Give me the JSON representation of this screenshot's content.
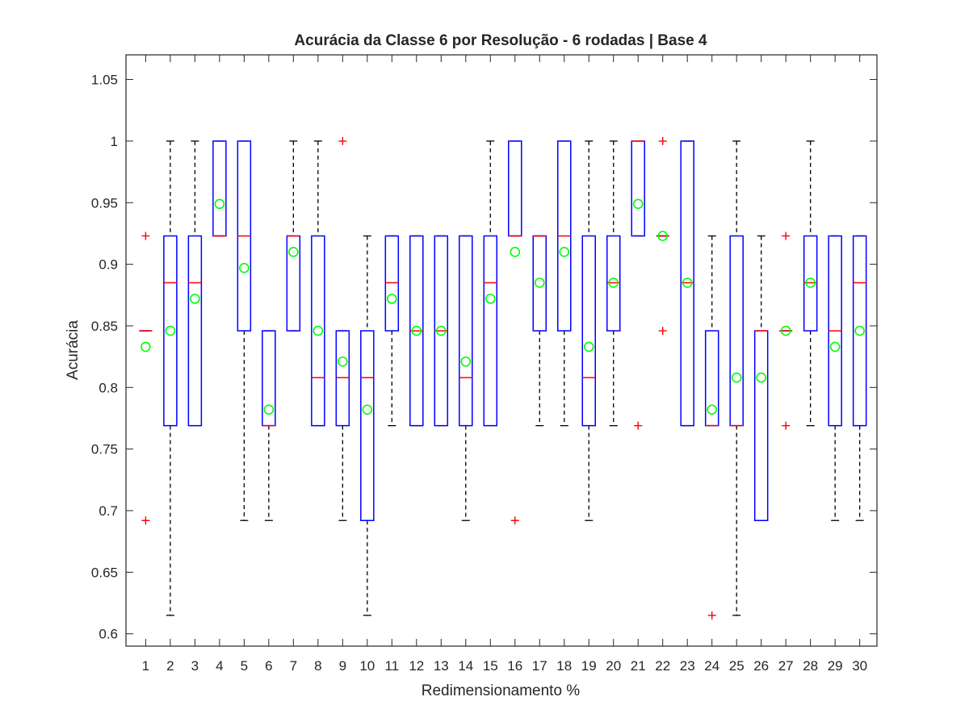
{
  "chart_data": {
    "type": "boxplot",
    "title": "Acurácia da Classe 6 por Resolução - 6 rodadas | Base 4",
    "xlabel": "Redimensionamento %",
    "ylabel": "Acurácia",
    "ylim": [
      0.59,
      1.07
    ],
    "yticks": [
      "0.6",
      "0.65",
      "0.7",
      "0.75",
      "0.8",
      "0.85",
      "0.9",
      "0.95",
      "1",
      "1.05"
    ],
    "ytick_values": [
      0.6,
      0.65,
      0.7,
      0.75,
      0.8,
      0.85,
      0.9,
      0.95,
      1.0,
      1.05
    ],
    "categories": [
      "1",
      "2",
      "3",
      "4",
      "5",
      "6",
      "7",
      "8",
      "9",
      "10",
      "11",
      "12",
      "13",
      "14",
      "15",
      "16",
      "17",
      "18",
      "19",
      "20",
      "21",
      "22",
      "23",
      "24",
      "25",
      "26",
      "27",
      "28",
      "29",
      "30"
    ],
    "colors": {
      "box": "#0000ff",
      "median": "#ff0000",
      "outlier": "#ff0000",
      "mean": "#00ff00",
      "whisker": "#000000",
      "axis": "#262626"
    },
    "boxes": [
      {
        "q1": 0.846,
        "median": 0.846,
        "q3": 0.846,
        "whisker_low": 0.846,
        "whisker_high": 0.846,
        "mean": 0.833,
        "outliers": [
          0.923,
          0.692
        ]
      },
      {
        "q1": 0.769,
        "median": 0.885,
        "q3": 0.923,
        "whisker_low": 0.615,
        "whisker_high": 1.0,
        "mean": 0.846,
        "outliers": []
      },
      {
        "q1": 0.769,
        "median": 0.885,
        "q3": 0.923,
        "whisker_low": 0.769,
        "whisker_high": 1.0,
        "mean": 0.872,
        "outliers": []
      },
      {
        "q1": 0.923,
        "median": 0.923,
        "q3": 1.0,
        "whisker_low": 0.923,
        "whisker_high": 1.0,
        "mean": 0.949,
        "outliers": []
      },
      {
        "q1": 0.846,
        "median": 0.923,
        "q3": 1.0,
        "whisker_low": 0.692,
        "whisker_high": 1.0,
        "mean": 0.897,
        "outliers": []
      },
      {
        "q1": 0.769,
        "median": 0.769,
        "q3": 0.846,
        "whisker_low": 0.692,
        "whisker_high": 0.846,
        "mean": 0.782,
        "outliers": []
      },
      {
        "q1": 0.846,
        "median": 0.923,
        "q3": 0.923,
        "whisker_low": 0.846,
        "whisker_high": 1.0,
        "mean": 0.91,
        "outliers": []
      },
      {
        "q1": 0.769,
        "median": 0.808,
        "q3": 0.923,
        "whisker_low": 0.769,
        "whisker_high": 1.0,
        "mean": 0.846,
        "outliers": []
      },
      {
        "q1": 0.769,
        "median": 0.808,
        "q3": 0.846,
        "whisker_low": 0.692,
        "whisker_high": 0.846,
        "mean": 0.821,
        "outliers": [
          1.0
        ]
      },
      {
        "q1": 0.692,
        "median": 0.808,
        "q3": 0.846,
        "whisker_low": 0.615,
        "whisker_high": 0.923,
        "mean": 0.782,
        "outliers": []
      },
      {
        "q1": 0.846,
        "median": 0.885,
        "q3": 0.923,
        "whisker_low": 0.769,
        "whisker_high": 0.923,
        "mean": 0.872,
        "outliers": []
      },
      {
        "q1": 0.769,
        "median": 0.846,
        "q3": 0.923,
        "whisker_low": 0.769,
        "whisker_high": 0.923,
        "mean": 0.846,
        "outliers": []
      },
      {
        "q1": 0.769,
        "median": 0.846,
        "q3": 0.923,
        "whisker_low": 0.769,
        "whisker_high": 0.923,
        "mean": 0.846,
        "outliers": []
      },
      {
        "q1": 0.769,
        "median": 0.808,
        "q3": 0.923,
        "whisker_low": 0.692,
        "whisker_high": 0.923,
        "mean": 0.821,
        "outliers": []
      },
      {
        "q1": 0.769,
        "median": 0.885,
        "q3": 0.923,
        "whisker_low": 0.769,
        "whisker_high": 1.0,
        "mean": 0.872,
        "outliers": []
      },
      {
        "q1": 0.923,
        "median": 0.923,
        "q3": 1.0,
        "whisker_low": 0.923,
        "whisker_high": 1.0,
        "mean": 0.91,
        "outliers": [
          0.692
        ]
      },
      {
        "q1": 0.846,
        "median": 0.923,
        "q3": 0.923,
        "whisker_low": 0.769,
        "whisker_high": 0.923,
        "mean": 0.885,
        "outliers": []
      },
      {
        "q1": 0.846,
        "median": 0.923,
        "q3": 1.0,
        "whisker_low": 0.769,
        "whisker_high": 1.0,
        "mean": 0.91,
        "outliers": []
      },
      {
        "q1": 0.769,
        "median": 0.808,
        "q3": 0.923,
        "whisker_low": 0.692,
        "whisker_high": 1.0,
        "mean": 0.833,
        "outliers": []
      },
      {
        "q1": 0.846,
        "median": 0.885,
        "q3": 0.923,
        "whisker_low": 0.769,
        "whisker_high": 1.0,
        "mean": 0.885,
        "outliers": []
      },
      {
        "q1": 0.923,
        "median": 1.0,
        "q3": 1.0,
        "whisker_low": 0.923,
        "whisker_high": 1.0,
        "mean": 0.949,
        "outliers": [
          0.769
        ]
      },
      {
        "q1": 0.923,
        "median": 0.923,
        "q3": 0.923,
        "whisker_low": 0.923,
        "whisker_high": 0.923,
        "mean": 0.923,
        "outliers": [
          1.0,
          0.846
        ]
      },
      {
        "q1": 0.769,
        "median": 0.885,
        "q3": 1.0,
        "whisker_low": 0.769,
        "whisker_high": 1.0,
        "mean": 0.885,
        "outliers": []
      },
      {
        "q1": 0.769,
        "median": 0.769,
        "q3": 0.846,
        "whisker_low": 0.769,
        "whisker_high": 0.923,
        "mean": 0.782,
        "outliers": [
          0.615
        ]
      },
      {
        "q1": 0.769,
        "median": 0.769,
        "q3": 0.923,
        "whisker_low": 0.615,
        "whisker_high": 1.0,
        "mean": 0.808,
        "outliers": []
      },
      {
        "q1": 0.692,
        "median": 0.846,
        "q3": 0.846,
        "whisker_low": 0.692,
        "whisker_high": 0.923,
        "mean": 0.808,
        "outliers": []
      },
      {
        "q1": 0.846,
        "median": 0.846,
        "q3": 0.846,
        "whisker_low": 0.846,
        "whisker_high": 0.846,
        "mean": 0.846,
        "outliers": [
          0.923,
          0.769
        ]
      },
      {
        "q1": 0.846,
        "median": 0.885,
        "q3": 0.923,
        "whisker_low": 0.769,
        "whisker_high": 1.0,
        "mean": 0.885,
        "outliers": []
      },
      {
        "q1": 0.769,
        "median": 0.846,
        "q3": 0.923,
        "whisker_low": 0.692,
        "whisker_high": 0.923,
        "mean": 0.833,
        "outliers": []
      },
      {
        "q1": 0.769,
        "median": 0.885,
        "q3": 0.923,
        "whisker_low": 0.692,
        "whisker_high": 0.923,
        "mean": 0.846,
        "outliers": []
      }
    ]
  }
}
